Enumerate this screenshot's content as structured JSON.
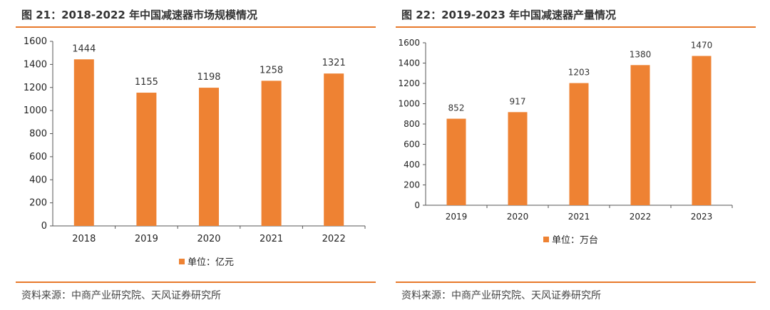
{
  "colors": {
    "accent": "#e8792b",
    "bar": "#ee8233"
  },
  "charts": [
    {
      "title": "图 21：2018-2022 年中国减速器市场规模情况",
      "source": "资料来源：中商产业研究院、天风证券研究所"
    },
    {
      "title": "图 22：2019-2023 年中国减速器产量情况",
      "source": "资料来源：中商产业研究院、天风证券研究所"
    }
  ],
  "chart_data": [
    {
      "type": "bar",
      "title": "图 21：2018-2022 年中国减速器市场规模情况",
      "categories": [
        "2018",
        "2019",
        "2020",
        "2021",
        "2022"
      ],
      "series": [
        {
          "name": "单位：亿元",
          "values": [
            1444,
            1155,
            1198,
            1258,
            1321
          ]
        }
      ],
      "ylim": [
        0,
        1600
      ],
      "yticks": [
        0,
        200,
        400,
        600,
        800,
        1000,
        1200,
        1400,
        1600
      ],
      "grid": false,
      "legend": "bottom"
    },
    {
      "type": "bar",
      "title": "图 22：2019-2023 年中国减速器产量情况",
      "categories": [
        "2019",
        "2020",
        "2021",
        "2022",
        "2023"
      ],
      "series": [
        {
          "name": "单位：万台",
          "values": [
            852,
            917,
            1203,
            1380,
            1470
          ]
        }
      ],
      "ylim": [
        0,
        1600
      ],
      "yticks": [
        0,
        200,
        400,
        600,
        800,
        1000,
        1200,
        1400,
        1600
      ],
      "grid": false,
      "legend": "bottom"
    }
  ]
}
